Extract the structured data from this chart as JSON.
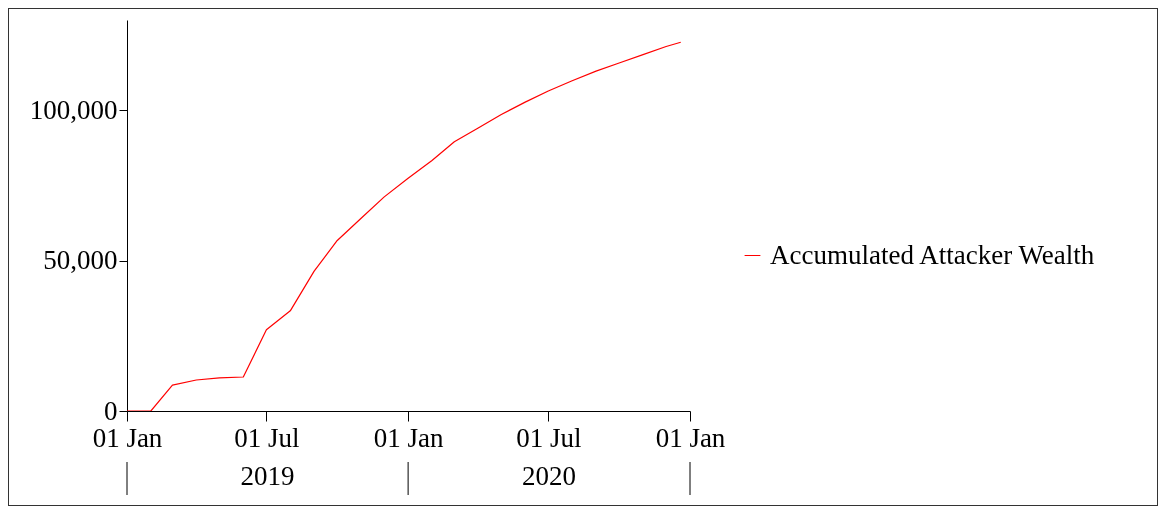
{
  "chart_data": {
    "type": "line",
    "x": [
      "2019-01-01",
      "2019-02-01",
      "2019-03-01",
      "2019-04-01",
      "2019-05-01",
      "2019-06-01",
      "2019-07-01",
      "2019-08-01",
      "2019-09-01",
      "2019-10-01",
      "2019-11-01",
      "2019-12-01",
      "2020-01-01",
      "2020-02-01",
      "2020-03-01",
      "2020-04-01",
      "2020-05-01",
      "2020-06-01",
      "2020-07-01",
      "2020-08-01",
      "2020-09-01",
      "2020-10-01",
      "2020-11-01",
      "2020-12-01",
      "2020-12-20"
    ],
    "series": [
      {
        "name": "Accumulated Attacker Wealth",
        "color": "#ff0000",
        "values": [
          0,
          0,
          8600,
          10300,
          11000,
          11300,
          27000,
          33300,
          46500,
          56700,
          64100,
          71200,
          77400,
          83300,
          89500,
          94100,
          98600,
          102700,
          106400,
          109800,
          113000,
          115700,
          118500,
          121200,
          122600
        ]
      }
    ],
    "xlim": [
      "2019-01-01",
      "2021-01-01"
    ],
    "xticks": [
      {
        "value": "2019-01-01",
        "label": "01 Jan"
      },
      {
        "value": "2019-07-01",
        "label": "01 Jul"
      },
      {
        "value": "2020-01-01",
        "label": "01 Jan"
      },
      {
        "value": "2020-07-01",
        "label": "01 Jul"
      },
      {
        "value": "2021-01-01",
        "label": "01 Jan"
      }
    ],
    "ylim": [
      0,
      130000
    ],
    "yticks": [
      {
        "value": 0,
        "label": "0"
      },
      {
        "value": 50000,
        "label": "50,000"
      },
      {
        "value": 100000,
        "label": "100,000"
      }
    ],
    "annotations": [
      "2019",
      "2020"
    ],
    "grid": false,
    "legend": "right",
    "marker": "none",
    "line_style": "solid"
  }
}
